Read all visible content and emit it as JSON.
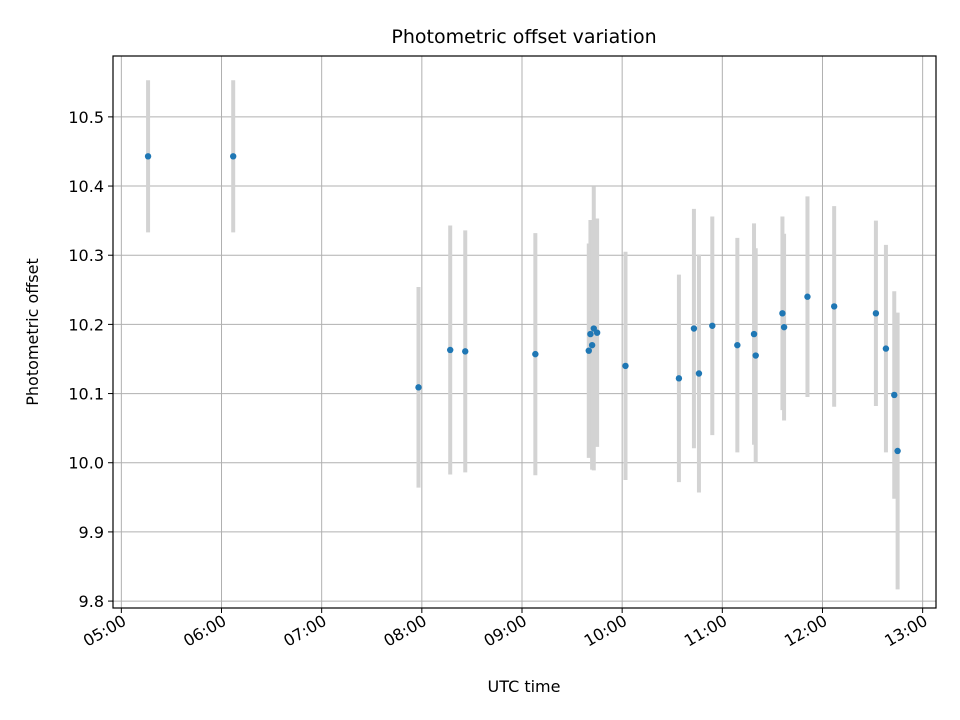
{
  "chart_data": {
    "type": "scatter",
    "title": "Photometric offset variation",
    "xlabel": "UTC time",
    "ylabel": "Photometric offset",
    "xlim": [
      "04:55",
      "13:08"
    ],
    "ylim": [
      9.79,
      10.588
    ],
    "x_ticks": [
      "05:00",
      "06:00",
      "07:00",
      "08:00",
      "09:00",
      "10:00",
      "11:00",
      "12:00",
      "13:00"
    ],
    "y_ticks": [
      "9.8",
      "9.9",
      "10.0",
      "10.1",
      "10.2",
      "10.3",
      "10.4",
      "10.5"
    ],
    "grid": true,
    "marker_color": "#1f77b4",
    "errorbar_color": "#d3d3d3",
    "points": [
      {
        "x": "05:16",
        "y": 10.443,
        "err": 0.11
      },
      {
        "x": "06:07",
        "y": 10.443,
        "err": 0.11
      },
      {
        "x": "07:58",
        "y": 10.109,
        "err": 0.145
      },
      {
        "x": "08:17",
        "y": 10.163,
        "err": 0.18
      },
      {
        "x": "08:26",
        "y": 10.161,
        "err": 0.175
      },
      {
        "x": "09:08",
        "y": 10.157,
        "err": 0.175
      },
      {
        "x": "09:40",
        "y": 10.162,
        "err": 0.155
      },
      {
        "x": "09:41",
        "y": 10.186,
        "err": 0.165
      },
      {
        "x": "09:42",
        "y": 10.17,
        "err": 0.18
      },
      {
        "x": "09:43",
        "y": 10.194,
        "err": 0.205
      },
      {
        "x": "09:45",
        "y": 10.188,
        "err": 0.165
      },
      {
        "x": "10:02",
        "y": 10.14,
        "err": 0.165
      },
      {
        "x": "10:34",
        "y": 10.122,
        "err": 0.15
      },
      {
        "x": "10:43",
        "y": 10.194,
        "err": 0.173
      },
      {
        "x": "10:46",
        "y": 10.129,
        "err": 0.172
      },
      {
        "x": "10:54",
        "y": 10.198,
        "err": 0.158
      },
      {
        "x": "11:09",
        "y": 10.17,
        "err": 0.155
      },
      {
        "x": "11:19",
        "y": 10.186,
        "err": 0.16
      },
      {
        "x": "11:20",
        "y": 10.155,
        "err": 0.155
      },
      {
        "x": "11:36",
        "y": 10.216,
        "err": 0.14
      },
      {
        "x": "11:37",
        "y": 10.196,
        "err": 0.135
      },
      {
        "x": "11:51",
        "y": 10.24,
        "err": 0.145
      },
      {
        "x": "12:07",
        "y": 10.226,
        "err": 0.145
      },
      {
        "x": "12:32",
        "y": 10.216,
        "err": 0.134
      },
      {
        "x": "12:38",
        "y": 10.165,
        "err": 0.15
      },
      {
        "x": "12:43",
        "y": 10.098,
        "err": 0.15
      },
      {
        "x": "12:45",
        "y": 10.017,
        "err": 0.2
      }
    ]
  }
}
